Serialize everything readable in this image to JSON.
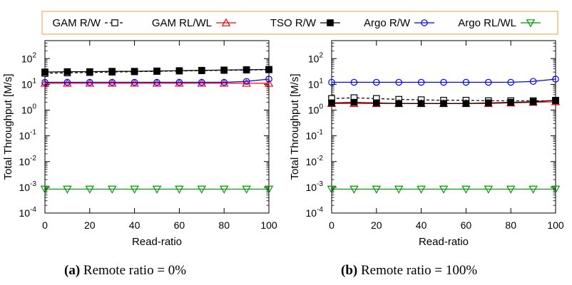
{
  "legend": {
    "border_color": "#e8a33a",
    "entries": [
      {
        "label": "GAM R/W",
        "color": "#000000",
        "marker": "open-square",
        "dash": "4,3"
      },
      {
        "label": "GAM RL/WL",
        "color": "#ff0000",
        "marker": "open-triangle-up",
        "dash": ""
      },
      {
        "label": "TSO R/W",
        "color": "#000000",
        "marker": "filled-square",
        "dash": ""
      },
      {
        "label": "Argo R/W",
        "color": "#0000ff",
        "marker": "open-circle",
        "dash": ""
      },
      {
        "label": "Argo RL/WL",
        "color": "#009900",
        "marker": "open-triangle-down",
        "dash": ""
      }
    ]
  },
  "captions": [
    {
      "tag": "(a)",
      "text": " Remote ratio = 0%"
    },
    {
      "tag": "(b)",
      "text": " Remote ratio = 100%"
    }
  ],
  "chart_data": [
    {
      "type": "line",
      "xlabel": "Read-ratio",
      "ylabel": "Total Throughput [M/s]",
      "yscale": "log",
      "xlim": [
        0,
        100
      ],
      "ylim": [
        0.0001,
        500
      ],
      "xticks": [
        "0",
        "20",
        "40",
        "60",
        "80",
        "100"
      ],
      "yticks": [
        {
          "base": "10",
          "exp": "-4",
          "v": 0.0001
        },
        {
          "base": "10",
          "exp": "-3",
          "v": 0.001
        },
        {
          "base": "10",
          "exp": "-2",
          "v": 0.01
        },
        {
          "base": "10",
          "exp": "-1",
          "v": 0.1
        },
        {
          "base": "10",
          "exp": "0",
          "v": 1
        },
        {
          "base": "10",
          "exp": "1",
          "v": 10
        },
        {
          "base": "10",
          "exp": "2",
          "v": 100
        }
      ],
      "x": [
        0,
        10,
        20,
        30,
        40,
        50,
        60,
        70,
        80,
        90,
        100
      ],
      "series": [
        {
          "name": "GAM R/W",
          "values": [
            27,
            28,
            29,
            30,
            31,
            32,
            33,
            34,
            35,
            36,
            37
          ]
        },
        {
          "name": "GAM RL/WL",
          "values": [
            11,
            11,
            11,
            11,
            11,
            11,
            11,
            11,
            11,
            11,
            11
          ]
        },
        {
          "name": "TSO R/W",
          "values": [
            30,
            31,
            31,
            32,
            32,
            33,
            34,
            35,
            36,
            37,
            38
          ]
        },
        {
          "name": "Argo R/W",
          "values": [
            12,
            12,
            12,
            12,
            12,
            12,
            12,
            12,
            12,
            13,
            16
          ]
        },
        {
          "name": "Argo RL/WL",
          "values": [
            0.00085,
            0.00085,
            0.00085,
            0.00085,
            0.00085,
            0.00085,
            0.00085,
            0.00085,
            0.00085,
            0.00085,
            0.00085
          ]
        }
      ]
    },
    {
      "type": "line",
      "xlabel": "Read-ratio",
      "ylabel": "Total Throughput [M/s]",
      "yscale": "log",
      "xlim": [
        0,
        100
      ],
      "ylim": [
        0.0001,
        500
      ],
      "xticks": [
        "0",
        "20",
        "40",
        "60",
        "80",
        "100"
      ],
      "yticks": [
        {
          "base": "10",
          "exp": "-4",
          "v": 0.0001
        },
        {
          "base": "10",
          "exp": "-3",
          "v": 0.001
        },
        {
          "base": "10",
          "exp": "-2",
          "v": 0.01
        },
        {
          "base": "10",
          "exp": "-1",
          "v": 0.1
        },
        {
          "base": "10",
          "exp": "0",
          "v": 1
        },
        {
          "base": "10",
          "exp": "1",
          "v": 10
        },
        {
          "base": "10",
          "exp": "2",
          "v": 100
        }
      ],
      "x": [
        0,
        10,
        20,
        30,
        40,
        50,
        60,
        70,
        80,
        90,
        100
      ],
      "series": [
        {
          "name": "GAM R/W",
          "values": [
            2.8,
            3.0,
            2.8,
            2.6,
            2.5,
            2.4,
            2.4,
            2.3,
            2.3,
            2.3,
            2.3
          ]
        },
        {
          "name": "GAM RL/WL",
          "values": [
            1.8,
            1.8,
            1.8,
            1.8,
            1.8,
            1.8,
            1.8,
            1.8,
            1.9,
            2.0,
            2.1
          ]
        },
        {
          "name": "TSO R/W",
          "values": [
            1.9,
            2.0,
            1.9,
            1.8,
            1.8,
            1.8,
            1.8,
            1.9,
            2.0,
            2.1,
            2.4
          ]
        },
        {
          "name": "Argo R/W",
          "values": [
            12,
            12,
            12,
            12,
            12,
            12,
            12,
            12,
            12,
            13,
            16
          ]
        },
        {
          "name": "Argo RL/WL",
          "values": [
            0.00085,
            0.00085,
            0.00085,
            0.00085,
            0.00085,
            0.00085,
            0.00085,
            0.00085,
            0.00085,
            0.00085,
            0.00085
          ]
        }
      ]
    }
  ]
}
